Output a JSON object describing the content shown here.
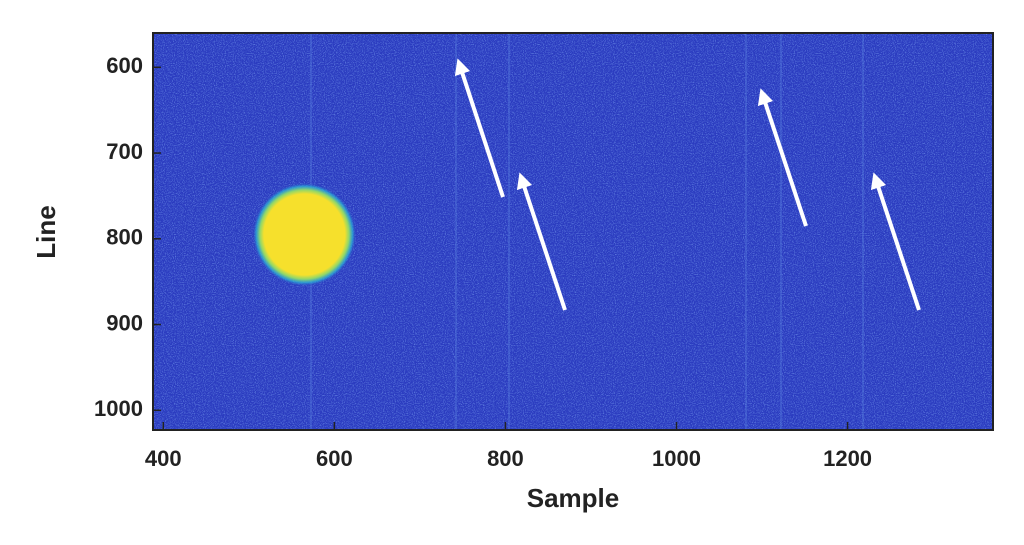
{
  "chart_data": {
    "type": "image",
    "x_label": "Sample",
    "y_label": "Line",
    "xlim": [
      388,
      1370
    ],
    "ylim": [
      1023,
      560
    ],
    "xticks": [
      400,
      600,
      800,
      1000,
      1200
    ],
    "yticks": [
      600,
      700,
      800,
      900,
      1000
    ],
    "background_color": "#2b3cc0",
    "disk": {
      "x": 565,
      "y": 795,
      "radius": 45,
      "color": "#f6e02c"
    }
  }
}
